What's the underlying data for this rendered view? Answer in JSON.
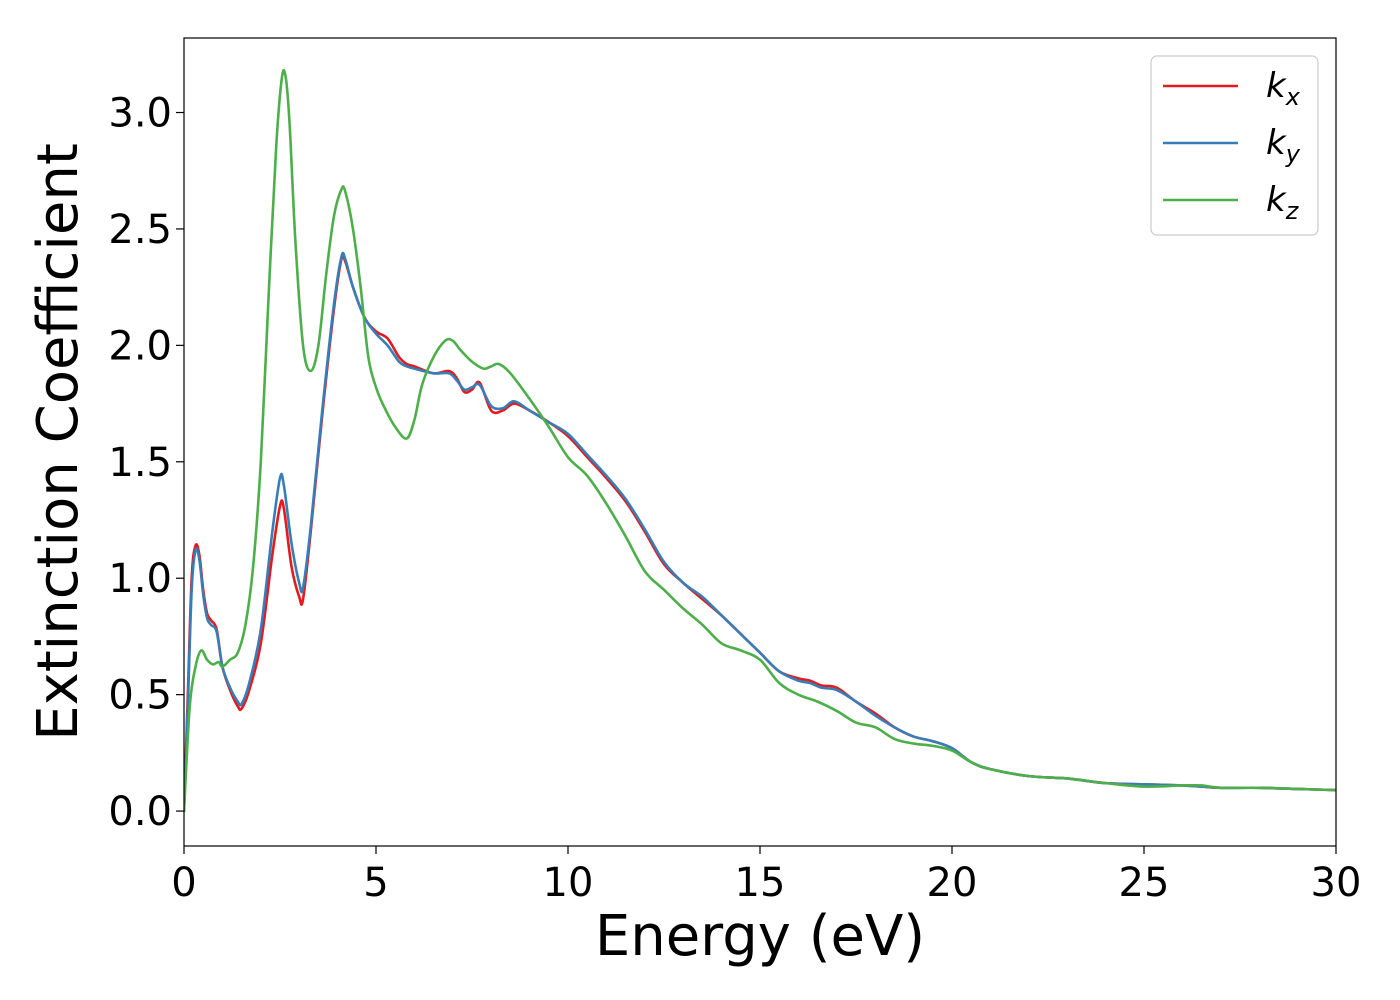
{
  "chart_data": {
    "type": "line",
    "title": "",
    "xlabel": "Energy (eV)",
    "ylabel": "Extinction Coefficient",
    "xlim": [
      0,
      30
    ],
    "ylim": [
      -0.15,
      3.32
    ],
    "xticks": [
      0,
      5,
      10,
      15,
      20,
      25,
      30
    ],
    "xtick_labels": [
      "0",
      "5",
      "10",
      "15",
      "20",
      "25",
      "30"
    ],
    "yticks": [
      0.0,
      0.5,
      1.0,
      1.5,
      2.0,
      2.5,
      3.0
    ],
    "ytick_labels": [
      "0.0",
      "0.5",
      "1.0",
      "1.5",
      "2.0",
      "2.5",
      "3.0"
    ],
    "grid": false,
    "legend_position": "top-right",
    "series": [
      {
        "name": "k_x",
        "legend_base": "k",
        "legend_sub": "x",
        "color": "#e41a1c",
        "x": [
          0,
          0.1,
          0.2,
          0.3,
          0.4,
          0.5,
          0.6,
          0.7,
          0.85,
          1.0,
          1.2,
          1.4,
          1.5,
          1.7,
          2.0,
          2.3,
          2.5,
          2.6,
          2.8,
          3.0,
          3.1,
          3.3,
          3.6,
          3.9,
          4.1,
          4.2,
          4.4,
          4.7,
          5.0,
          5.3,
          5.6,
          5.8,
          6.0,
          6.5,
          6.9,
          7.1,
          7.3,
          7.5,
          7.7,
          8.0,
          8.3,
          8.6,
          9.0,
          9.5,
          10.0,
          10.5,
          11.0,
          11.5,
          12.0,
          12.5,
          13.0,
          13.5,
          14.0,
          14.5,
          15.0,
          15.5,
          16.0,
          16.3,
          16.6,
          17.0,
          17.5,
          18.0,
          18.5,
          19.0,
          19.5,
          20.0,
          20.5,
          21.0,
          22.0,
          23.0,
          24.0,
          25.0,
          26.0,
          26.5,
          27.0,
          28.0,
          29.0,
          30.0
        ],
        "values": [
          0.0,
          0.5,
          1.0,
          1.14,
          1.1,
          0.95,
          0.85,
          0.82,
          0.78,
          0.62,
          0.52,
          0.45,
          0.44,
          0.52,
          0.72,
          1.1,
          1.31,
          1.3,
          1.05,
          0.92,
          0.91,
          1.2,
          1.7,
          2.15,
          2.37,
          2.36,
          2.25,
          2.12,
          2.06,
          2.03,
          1.95,
          1.92,
          1.91,
          1.88,
          1.89,
          1.86,
          1.8,
          1.81,
          1.84,
          1.72,
          1.72,
          1.75,
          1.72,
          1.67,
          1.61,
          1.52,
          1.43,
          1.33,
          1.2,
          1.06,
          0.98,
          0.91,
          0.84,
          0.76,
          0.68,
          0.6,
          0.57,
          0.56,
          0.54,
          0.53,
          0.47,
          0.42,
          0.36,
          0.32,
          0.3,
          0.27,
          0.21,
          0.18,
          0.15,
          0.14,
          0.12,
          0.115,
          0.11,
          0.105,
          0.1,
          0.1,
          0.095,
          0.09
        ]
      },
      {
        "name": "k_y",
        "legend_base": "k",
        "legend_sub": "y",
        "color": "#377eb8",
        "x": [
          0,
          0.1,
          0.2,
          0.3,
          0.4,
          0.5,
          0.6,
          0.7,
          0.85,
          1.0,
          1.2,
          1.4,
          1.5,
          1.7,
          2.0,
          2.3,
          2.5,
          2.6,
          2.8,
          3.0,
          3.1,
          3.3,
          3.6,
          3.9,
          4.1,
          4.2,
          4.4,
          4.7,
          5.0,
          5.3,
          5.6,
          5.8,
          6.0,
          6.5,
          6.9,
          7.1,
          7.3,
          7.5,
          7.7,
          8.0,
          8.3,
          8.6,
          9.0,
          9.5,
          10.0,
          10.5,
          11.0,
          11.5,
          12.0,
          12.5,
          13.0,
          13.5,
          14.0,
          14.5,
          15.0,
          15.5,
          16.0,
          16.3,
          16.6,
          17.0,
          17.5,
          18.0,
          18.5,
          19.0,
          19.5,
          20.0,
          20.5,
          21.0,
          22.0,
          23.0,
          24.0,
          25.0,
          26.0,
          26.5,
          27.0,
          28.0,
          29.0,
          30.0
        ],
        "values": [
          0.0,
          0.45,
          0.95,
          1.12,
          1.08,
          0.93,
          0.83,
          0.8,
          0.77,
          0.62,
          0.53,
          0.47,
          0.46,
          0.55,
          0.78,
          1.2,
          1.43,
          1.4,
          1.15,
          0.98,
          0.96,
          1.22,
          1.72,
          2.17,
          2.38,
          2.37,
          2.25,
          2.12,
          2.05,
          2.0,
          1.93,
          1.91,
          1.9,
          1.88,
          1.88,
          1.85,
          1.81,
          1.82,
          1.83,
          1.74,
          1.73,
          1.76,
          1.72,
          1.67,
          1.62,
          1.53,
          1.44,
          1.34,
          1.21,
          1.07,
          0.98,
          0.92,
          0.84,
          0.76,
          0.68,
          0.6,
          0.56,
          0.55,
          0.53,
          0.52,
          0.47,
          0.41,
          0.36,
          0.32,
          0.3,
          0.27,
          0.21,
          0.18,
          0.15,
          0.14,
          0.12,
          0.115,
          0.11,
          0.105,
          0.1,
          0.1,
          0.095,
          0.09
        ]
      },
      {
        "name": "k_z",
        "legend_base": "k",
        "legend_sub": "z",
        "color": "#4daf4a",
        "x": [
          0,
          0.15,
          0.3,
          0.45,
          0.6,
          0.75,
          0.9,
          1.0,
          1.2,
          1.4,
          1.6,
          1.8,
          2.0,
          2.2,
          2.4,
          2.55,
          2.65,
          2.75,
          2.9,
          3.1,
          3.3,
          3.5,
          3.7,
          3.9,
          4.1,
          4.2,
          4.4,
          4.6,
          4.8,
          5.0,
          5.2,
          5.5,
          5.8,
          6.0,
          6.2,
          6.5,
          6.8,
          7.0,
          7.2,
          7.5,
          7.8,
          8.0,
          8.2,
          8.5,
          9.0,
          9.5,
          10.0,
          10.5,
          11.0,
          11.5,
          12.0,
          12.5,
          13.0,
          13.5,
          14.0,
          14.5,
          15.0,
          15.5,
          16.0,
          16.5,
          17.0,
          17.5,
          18.0,
          18.5,
          19.0,
          19.5,
          20.0,
          20.5,
          21.0,
          22.0,
          23.0,
          24.0,
          25.0,
          26.0,
          26.5,
          27.0,
          28.0,
          29.0,
          30.0
        ],
        "values": [
          0.0,
          0.45,
          0.62,
          0.69,
          0.65,
          0.63,
          0.64,
          0.62,
          0.65,
          0.68,
          0.8,
          1.05,
          1.5,
          2.2,
          2.85,
          3.15,
          3.15,
          2.95,
          2.45,
          2.0,
          1.89,
          2.0,
          2.3,
          2.55,
          2.67,
          2.66,
          2.5,
          2.25,
          1.95,
          1.82,
          1.74,
          1.65,
          1.6,
          1.68,
          1.83,
          1.95,
          2.02,
          2.02,
          1.98,
          1.93,
          1.9,
          1.91,
          1.92,
          1.88,
          1.77,
          1.65,
          1.52,
          1.44,
          1.32,
          1.18,
          1.03,
          0.95,
          0.87,
          0.8,
          0.72,
          0.69,
          0.65,
          0.55,
          0.5,
          0.47,
          0.43,
          0.38,
          0.36,
          0.31,
          0.29,
          0.28,
          0.26,
          0.21,
          0.18,
          0.15,
          0.14,
          0.12,
          0.105,
          0.11,
          0.11,
          0.1,
          0.1,
          0.095,
          0.09
        ]
      }
    ]
  }
}
